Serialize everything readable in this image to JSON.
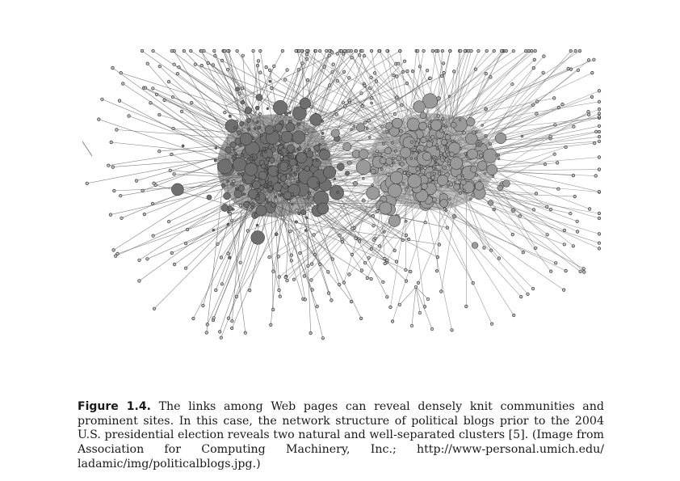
{
  "figure": {
    "label": "Figure 1.4.",
    "caption": "The links among Web pages can reveal densely knit communities and prominent sites. In this case, the network structure of political blogs prior to the 2004 U.S. presidential election reveals two natural and well-separated clusters [5]. (Image from Association for Computing Machinery, Inc.; http://www-personal.umich.edu/ ladamic/img/politicalblogs.jpg.)"
  },
  "network": {
    "clusters": [
      {
        "id": "left-cluster",
        "fill": "#6f6f6f"
      },
      {
        "id": "right-cluster",
        "fill": "#9a9a9a"
      }
    ],
    "edge_color": "#5a5a5a",
    "node_stroke": "#222222"
  }
}
